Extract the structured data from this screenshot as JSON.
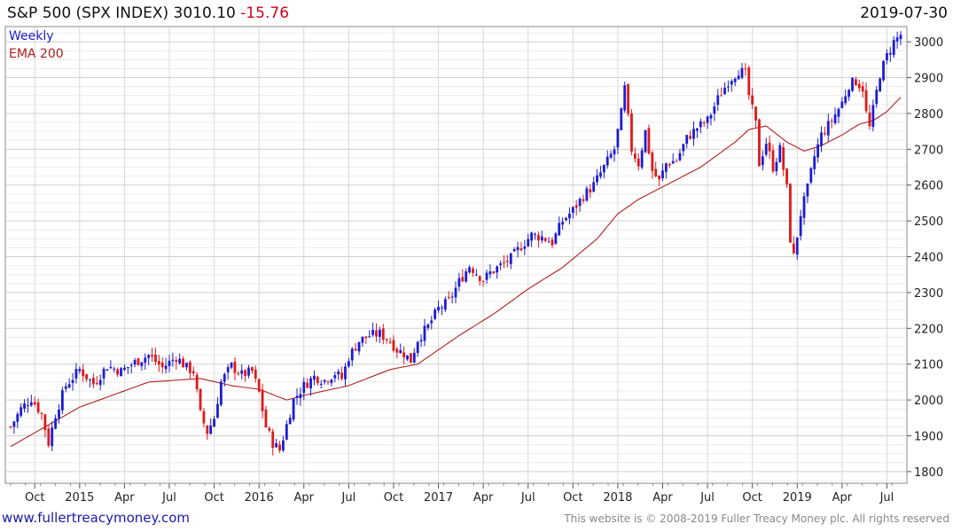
{
  "header": {
    "title": "S&P 500 (SPX INDEX) 3010.10",
    "change": "-15.76",
    "date": "2019-07-30"
  },
  "footer": {
    "site": "www.fullertreacymoney.com",
    "copyright": "This website is © 2008-2019 Fuller Treacy Money plc. All rights reserved"
  },
  "colors": {
    "up": "#1c1cd6",
    "down": "#e01818",
    "ema": "#b02020",
    "grid": "#d4d4d4"
  },
  "chart_data": {
    "type": "candlestick",
    "title": "S&P 500 (SPX INDEX) 3010.10 -15.76",
    "frequency": "Weekly",
    "legend": [
      "Weekly",
      "EMA 200"
    ],
    "legend_position": "top-left",
    "ylim": [
      1770,
      3040
    ],
    "yticks": [
      1800,
      1900,
      2000,
      2100,
      2200,
      2300,
      2400,
      2500,
      2600,
      2700,
      2800,
      2900,
      3000
    ],
    "xticks": [
      {
        "label": "Oct",
        "week": 7
      },
      {
        "label": "2015",
        "week": 20
      },
      {
        "label": "Apr",
        "week": 33
      },
      {
        "label": "Jul",
        "week": 46
      },
      {
        "label": "Oct",
        "week": 59
      },
      {
        "label": "2016",
        "week": 72
      },
      {
        "label": "Apr",
        "week": 85
      },
      {
        "label": "Jul",
        "week": 98
      },
      {
        "label": "Oct",
        "week": 111
      },
      {
        "label": "2017",
        "week": 124
      },
      {
        "label": "Apr",
        "week": 137
      },
      {
        "label": "Jul",
        "week": 150
      },
      {
        "label": "Oct",
        "week": 163
      },
      {
        "label": "2018",
        "week": 176
      },
      {
        "label": "Apr",
        "week": 189
      },
      {
        "label": "Jul",
        "week": 202
      },
      {
        "label": "Oct",
        "week": 215
      },
      {
        "label": "2019",
        "week": 228
      },
      {
        "label": "Apr",
        "week": 241
      },
      {
        "label": "Jul",
        "week": 254
      }
    ],
    "weeks": 259,
    "close_path": [
      [
        0,
        1925
      ],
      [
        3,
        1975
      ],
      [
        6,
        2005
      ],
      [
        9,
        1960
      ],
      [
        11,
        1880
      ],
      [
        13,
        1960
      ],
      [
        16,
        2040
      ],
      [
        20,
        2085
      ],
      [
        24,
        2045
      ],
      [
        28,
        2095
      ],
      [
        32,
        2080
      ],
      [
        36,
        2105
      ],
      [
        40,
        2125
      ],
      [
        44,
        2090
      ],
      [
        48,
        2120
      ],
      [
        51,
        2090
      ],
      [
        53,
        2080
      ],
      [
        55,
        1960
      ],
      [
        57,
        1910
      ],
      [
        59,
        1950
      ],
      [
        61,
        2050
      ],
      [
        64,
        2095
      ],
      [
        67,
        2070
      ],
      [
        70,
        2080
      ],
      [
        72,
        2020
      ],
      [
        74,
        1925
      ],
      [
        76,
        1880
      ],
      [
        78,
        1860
      ],
      [
        80,
        1930
      ],
      [
        82,
        2000
      ],
      [
        85,
        2040
      ],
      [
        88,
        2065
      ],
      [
        91,
        2055
      ],
      [
        94,
        2075
      ],
      [
        96,
        2060
      ],
      [
        98,
        2120
      ],
      [
        101,
        2165
      ],
      [
        104,
        2180
      ],
      [
        107,
        2185
      ],
      [
        110,
        2165
      ],
      [
        112,
        2140
      ],
      [
        114,
        2130
      ],
      [
        116,
        2110
      ],
      [
        118,
        2170
      ],
      [
        121,
        2205
      ],
      [
        124,
        2255
      ],
      [
        127,
        2275
      ],
      [
        130,
        2330
      ],
      [
        133,
        2375
      ],
      [
        135,
        2355
      ],
      [
        137,
        2335
      ],
      [
        139,
        2355
      ],
      [
        142,
        2375
      ],
      [
        145,
        2395
      ],
      [
        148,
        2430
      ],
      [
        151,
        2460
      ],
      [
        154,
        2455
      ],
      [
        157,
        2440
      ],
      [
        160,
        2500
      ],
      [
        163,
        2530
      ],
      [
        166,
        2570
      ],
      [
        169,
        2600
      ],
      [
        172,
        2650
      ],
      [
        175,
        2700
      ],
      [
        177,
        2800
      ],
      [
        178,
        2870
      ],
      [
        180,
        2700
      ],
      [
        182,
        2660
      ],
      [
        184,
        2750
      ],
      [
        186,
        2640
      ],
      [
        188,
        2610
      ],
      [
        190,
        2660
      ],
      [
        193,
        2670
      ],
      [
        196,
        2730
      ],
      [
        199,
        2760
      ],
      [
        202,
        2780
      ],
      [
        205,
        2840
      ],
      [
        208,
        2890
      ],
      [
        211,
        2920
      ],
      [
        213,
        2910
      ],
      [
        214,
        2850
      ],
      [
        216,
        2770
      ],
      [
        217,
        2660
      ],
      [
        219,
        2720
      ],
      [
        221,
        2650
      ],
      [
        223,
        2700
      ],
      [
        225,
        2590
      ],
      [
        226,
        2450
      ],
      [
        227,
        2400
      ],
      [
        228,
        2460
      ],
      [
        229,
        2520
      ],
      [
        231,
        2590
      ],
      [
        233,
        2680
      ],
      [
        235,
        2740
      ],
      [
        238,
        2780
      ],
      [
        241,
        2830
      ],
      [
        243,
        2880
      ],
      [
        245,
        2890
      ],
      [
        247,
        2870
      ],
      [
        248,
        2800
      ],
      [
        249,
        2760
      ],
      [
        250,
        2810
      ],
      [
        252,
        2910
      ],
      [
        254,
        2960
      ],
      [
        256,
        3000
      ],
      [
        258,
        3020
      ]
    ],
    "ema_path": [
      [
        0,
        1870
      ],
      [
        20,
        1980
      ],
      [
        40,
        2050
      ],
      [
        55,
        2060
      ],
      [
        64,
        2040
      ],
      [
        72,
        2030
      ],
      [
        80,
        2000
      ],
      [
        86,
        2015
      ],
      [
        98,
        2040
      ],
      [
        110,
        2085
      ],
      [
        118,
        2100
      ],
      [
        130,
        2180
      ],
      [
        140,
        2240
      ],
      [
        150,
        2310
      ],
      [
        160,
        2370
      ],
      [
        170,
        2450
      ],
      [
        176,
        2520
      ],
      [
        182,
        2560
      ],
      [
        190,
        2600
      ],
      [
        200,
        2650
      ],
      [
        210,
        2720
      ],
      [
        214,
        2755
      ],
      [
        219,
        2765
      ],
      [
        225,
        2720
      ],
      [
        230,
        2695
      ],
      [
        235,
        2710
      ],
      [
        241,
        2740
      ],
      [
        246,
        2770
      ],
      [
        250,
        2780
      ],
      [
        254,
        2805
      ],
      [
        258,
        2845
      ]
    ]
  }
}
